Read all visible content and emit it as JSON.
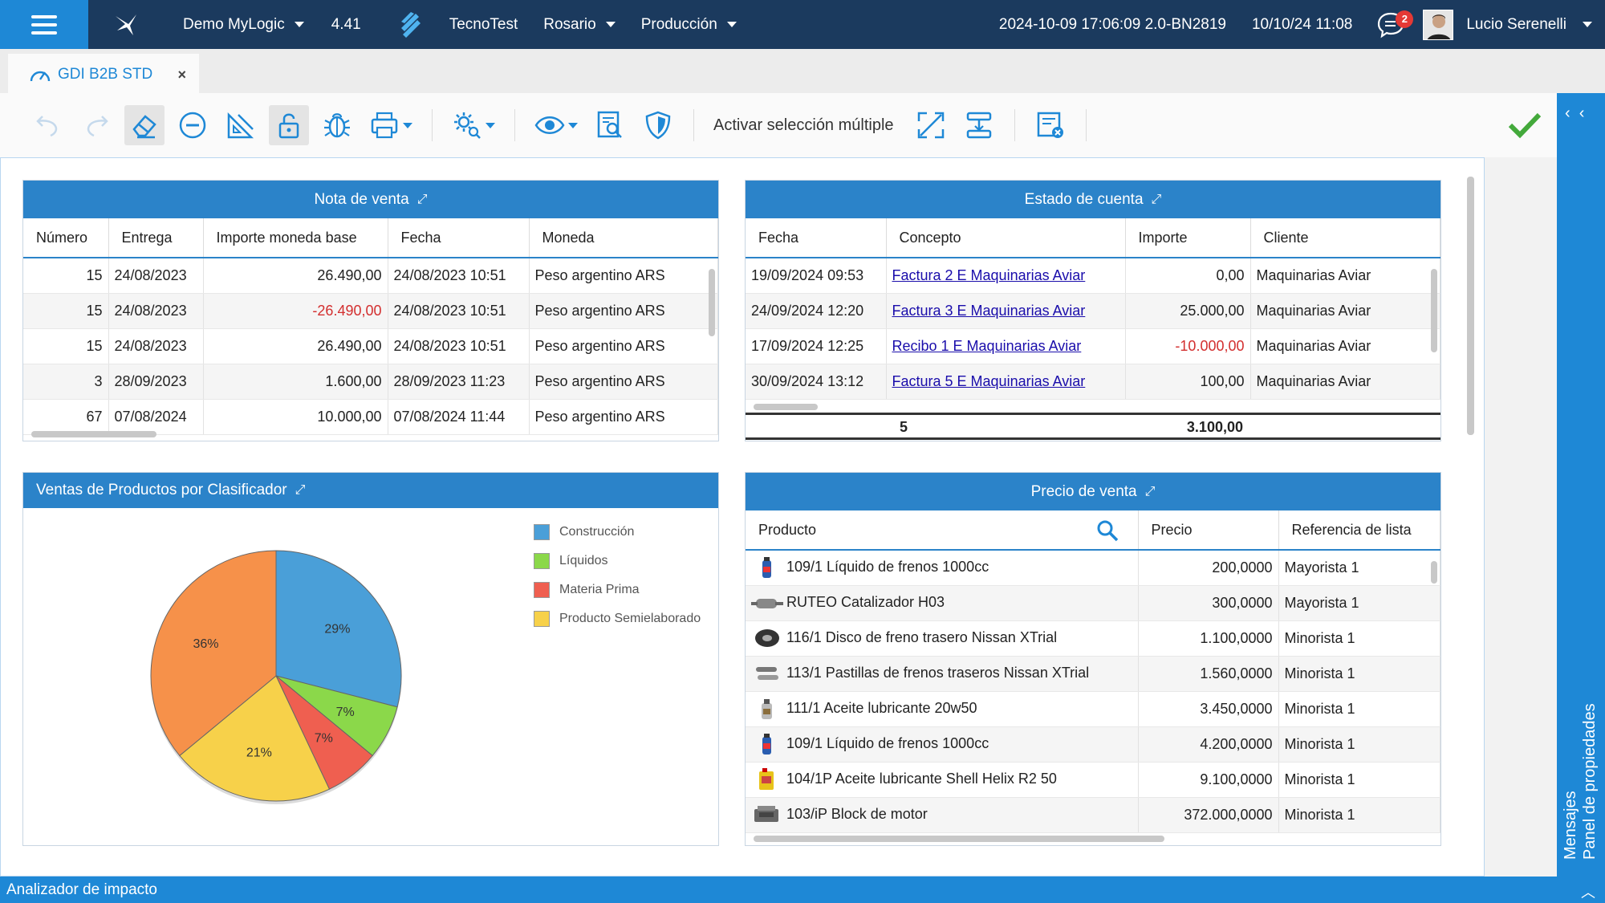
{
  "topbar": {
    "company": "Demo MyLogic",
    "version": "4.41",
    "database": "TecnoTest",
    "location": "Rosario",
    "environment": "Producción",
    "build": "2024-10-09 17:06:09 2.0-BN2819",
    "datetime": "10/10/24 11:08",
    "notifications": "2",
    "user": "Lucio Serenelli"
  },
  "tab": {
    "title": "GDI B2B STD",
    "close": "×"
  },
  "toolbar": {
    "multi_select": "Activar selección múltiple"
  },
  "right_panel": {
    "messages": "Mensajes",
    "properties": "Panel de propiedades"
  },
  "nota_venta": {
    "title": "Nota de venta",
    "columns": [
      "Número",
      "Entrega",
      "Importe moneda base",
      "Fecha",
      "Moneda"
    ],
    "rows": [
      {
        "numero": "15",
        "entrega": "24/08/2023",
        "importe": "26.490,00",
        "fecha": "24/08/2023 10:51",
        "moneda": "Peso argentino ARS"
      },
      {
        "numero": "15",
        "entrega": "24/08/2023",
        "importe": "-26.490,00",
        "fecha": "24/08/2023 10:51",
        "moneda": "Peso argentino ARS"
      },
      {
        "numero": "15",
        "entrega": "24/08/2023",
        "importe": "26.490,00",
        "fecha": "24/08/2023 10:51",
        "moneda": "Peso argentino ARS"
      },
      {
        "numero": "3",
        "entrega": "28/09/2023",
        "importe": "1.600,00",
        "fecha": "28/09/2023 11:23",
        "moneda": "Peso argentino ARS"
      },
      {
        "numero": "67",
        "entrega": "07/08/2024",
        "importe": "10.000,00",
        "fecha": "07/08/2024 11:44",
        "moneda": "Peso argentino ARS"
      }
    ]
  },
  "estado_cuenta": {
    "title": "Estado de cuenta",
    "columns": [
      "Fecha",
      "Concepto",
      "Importe",
      "Cliente"
    ],
    "rows": [
      {
        "fecha": "19/09/2024 09:53",
        "concepto": "Factura 2 E Maquinarias Aviar",
        "importe": "0,00",
        "cliente": "Maquinarias Aviar"
      },
      {
        "fecha": "24/09/2024 12:20",
        "concepto": "Factura 3 E Maquinarias Aviar",
        "importe": "25.000,00",
        "cliente": "Maquinarias Aviar"
      },
      {
        "fecha": "17/09/2024 12:25",
        "concepto": "Recibo 1 E Maquinarias Aviar",
        "importe": "-10.000,00",
        "cliente": "Maquinarias Aviar"
      },
      {
        "fecha": "30/09/2024 13:12",
        "concepto": "Factura 5 E Maquinarias Aviar",
        "importe": "100,00",
        "cliente": "Maquinarias Aviar"
      }
    ],
    "total_count": "5",
    "total_amount": "3.100,00"
  },
  "ventas_clasificador": {
    "title": "Ventas de Productos por Clasificador"
  },
  "chart_data": {
    "type": "pie",
    "title": "Ventas de Productos por Clasificador",
    "categories": [
      "Construcción",
      "Líquidos",
      "Materia Prima",
      "Producto Semielaborado",
      ""
    ],
    "values": [
      29,
      7,
      7,
      21,
      36
    ],
    "labels": [
      "29%",
      "7%",
      "7%",
      "21%",
      "36%"
    ],
    "colors": [
      "#4a9fd8",
      "#8bd84a",
      "#ef5f50",
      "#f7d14a",
      "#f6914a"
    ],
    "legend": [
      "Construcción",
      "Líquidos",
      "Materia Prima",
      "Producto Semielaborado"
    ],
    "legend_position": "right"
  },
  "precio_venta": {
    "title": "Precio de venta",
    "columns": [
      "Producto",
      "Precio",
      "Referencia de lista"
    ],
    "rows": [
      {
        "icon": "brake-fluid-icon",
        "producto": "109/1 Líquido de frenos 1000cc",
        "precio": "200,0000",
        "ref": "Mayorista 1"
      },
      {
        "icon": "catalyst-icon",
        "producto": "RUTEO Catalizador H03",
        "precio": "300,0000",
        "ref": "Mayorista 1"
      },
      {
        "icon": "brake-disc-icon",
        "producto": "116/1 Disco de freno trasero Nissan XTrial",
        "precio": "1.100,0000",
        "ref": "Minorista 1"
      },
      {
        "icon": "brake-pads-icon",
        "producto": "113/1 Pastillas de frenos traseros Nissan XTrial",
        "precio": "1.560,0000",
        "ref": "Minorista 1"
      },
      {
        "icon": "oil-bottle-icon",
        "producto": "111/1 Aceite lubricante 20w50",
        "precio": "3.450,0000",
        "ref": "Minorista 1"
      },
      {
        "icon": "brake-fluid-icon",
        "producto": "109/1 Líquido de frenos 1000cc",
        "precio": "4.200,0000",
        "ref": "Minorista 1"
      },
      {
        "icon": "oil-can-icon",
        "producto": "104/1P Aceite lubricante Shell Helix R2 50",
        "precio": "9.100,0000",
        "ref": "Minorista 1"
      },
      {
        "icon": "engine-block-icon",
        "producto": "103/iP Block de motor",
        "precio": "372.000,0000",
        "ref": "Minorista 1"
      }
    ]
  },
  "statusbar": {
    "label": "Analizador de impacto"
  },
  "colors": {
    "accent": "#1e88d6",
    "topbar": "#1b3a5e",
    "panel_header": "#2b83c9",
    "negative": "#d32f2f"
  }
}
